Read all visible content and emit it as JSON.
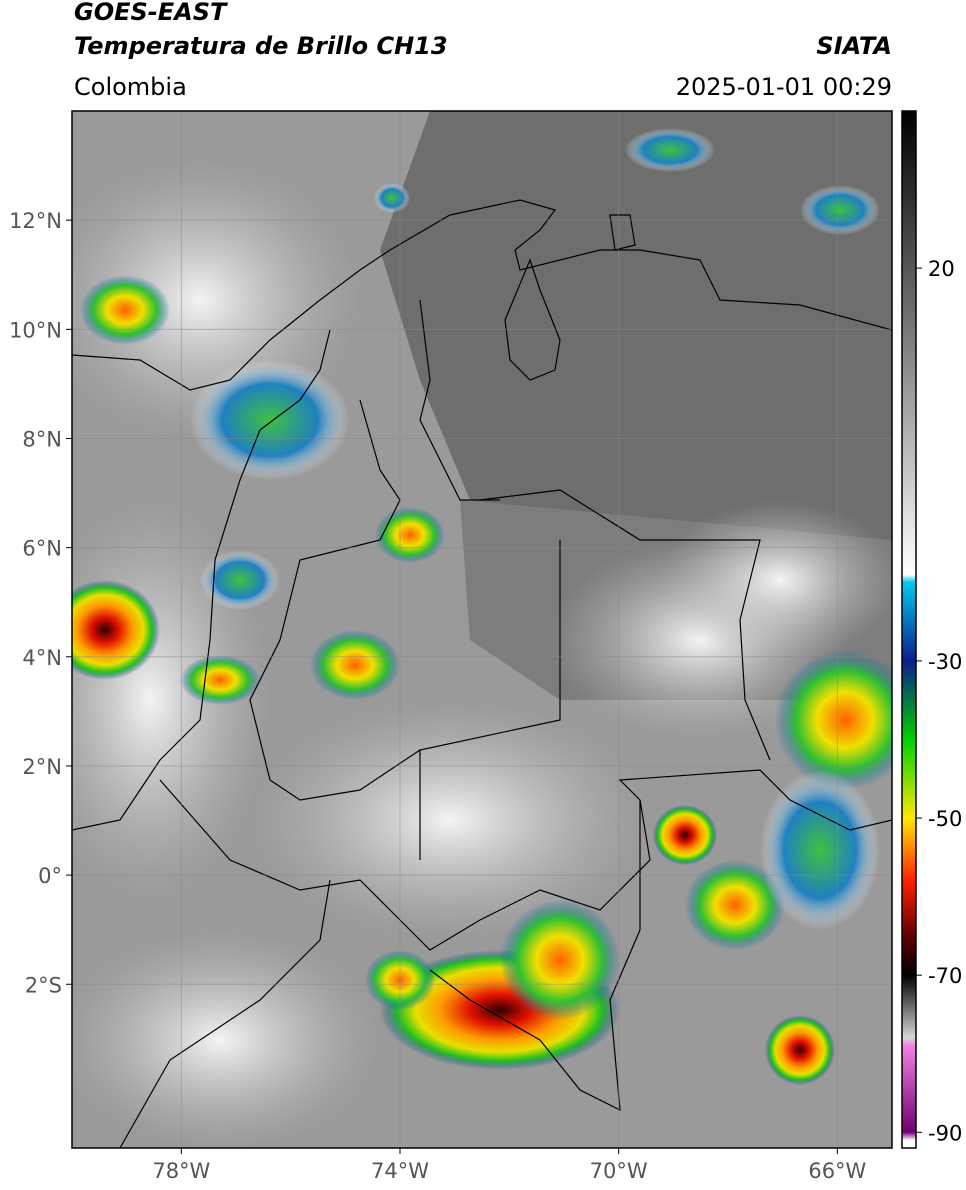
{
  "header": {
    "title": "GOES-EAST",
    "subtitle": "Temperatura de Brillo CH13",
    "source": "SIATA",
    "region": "Colombia",
    "timestamp": "2025-01-01 00:29"
  },
  "map": {
    "xlim": [
      -80,
      -65
    ],
    "ylim": [
      -5,
      14
    ],
    "xticks": [
      {
        "value": -78,
        "label": "78°W"
      },
      {
        "value": -74,
        "label": "74°W"
      },
      {
        "value": -70,
        "label": "70°W"
      },
      {
        "value": -66,
        "label": "66°W"
      }
    ],
    "yticks": [
      {
        "value": 12,
        "label": "12°N"
      },
      {
        "value": 10,
        "label": "10°N"
      },
      {
        "value": 8,
        "label": "8°N"
      },
      {
        "value": 6,
        "label": "6°N"
      },
      {
        "value": 4,
        "label": "4°N"
      },
      {
        "value": 2,
        "label": "2°N"
      },
      {
        "value": 0,
        "label": "0°"
      },
      {
        "value": -2,
        "label": "2°S"
      }
    ],
    "grid": true
  },
  "colorbar": {
    "lim": [
      -92,
      40
    ],
    "ticks": [
      20,
      -30,
      -50,
      -70,
      -90
    ],
    "stops": [
      {
        "value": 40,
        "color": "#000000"
      },
      {
        "value": -19,
        "color": "#ffffff"
      },
      {
        "value": -20,
        "color": "#00c8f0"
      },
      {
        "value": -30,
        "color": "#0a1e8c"
      },
      {
        "value": -40,
        "color": "#00d000"
      },
      {
        "value": -50,
        "color": "#ffe800"
      },
      {
        "value": -58,
        "color": "#ff2000"
      },
      {
        "value": -65,
        "color": "#600000"
      },
      {
        "value": -70,
        "color": "#000000"
      },
      {
        "value": -78,
        "color": "#d8d8d8"
      },
      {
        "value": -79,
        "color": "#f080e0"
      },
      {
        "value": -90,
        "color": "#700070"
      },
      {
        "value": -91,
        "color": "#ffffff"
      }
    ]
  }
}
